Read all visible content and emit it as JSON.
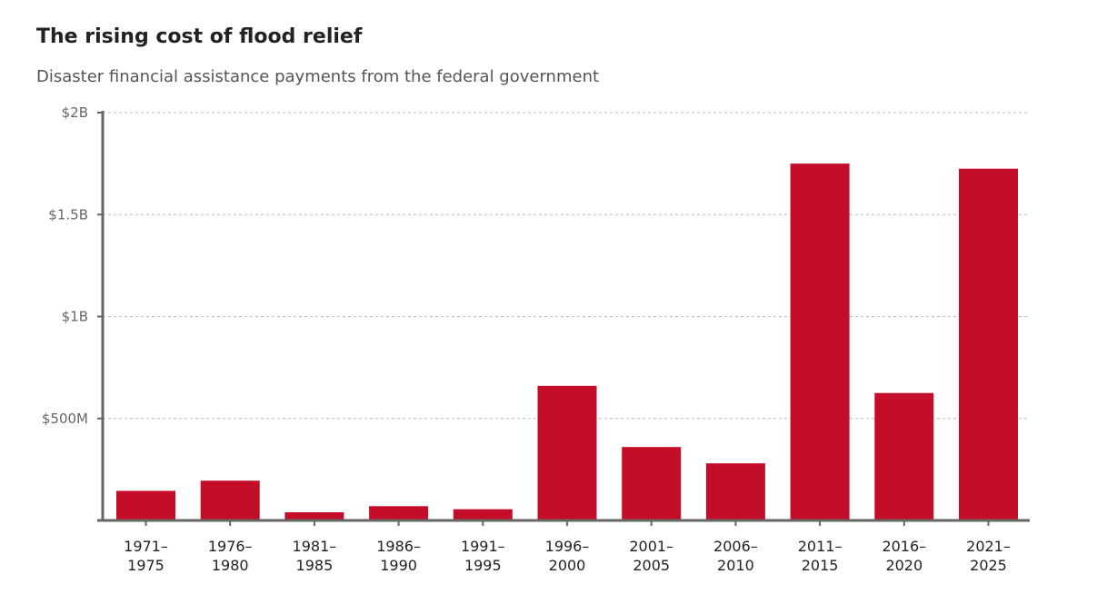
{
  "chart_data": {
    "type": "bar",
    "title": "The rising cost of flood relief",
    "subtitle": "Disaster financial assistance payments from the federal government",
    "xlabel": "",
    "ylabel": "",
    "categories": [
      [
        "1971–",
        "1975"
      ],
      [
        "1976–",
        "1980"
      ],
      [
        "1981–",
        "1985"
      ],
      [
        "1986–",
        "1990"
      ],
      [
        "1991–",
        "1995"
      ],
      [
        "1996–",
        "2000"
      ],
      [
        "2001–",
        "2005"
      ],
      [
        "2006–",
        "2010"
      ],
      [
        "2011–",
        "2015"
      ],
      [
        "2016–",
        "2020"
      ],
      [
        "2021–",
        "2025"
      ]
    ],
    "values": [
      145,
      195,
      40,
      70,
      55,
      660,
      360,
      280,
      1750,
      625,
      1725
    ],
    "unit": "millions of dollars",
    "ylim": [
      0,
      2000
    ],
    "yticks": [
      {
        "value": 500,
        "label": "$500M"
      },
      {
        "value": 1000,
        "label": "$1B"
      },
      {
        "value": 1500,
        "label": "$1.5B"
      },
      {
        "value": 2000,
        "label": "$2B"
      }
    ],
    "grid": true,
    "legend": "none",
    "colors": {
      "bar": "#c40d28",
      "axis": "#666666",
      "grid": "#bbbbbb"
    }
  }
}
